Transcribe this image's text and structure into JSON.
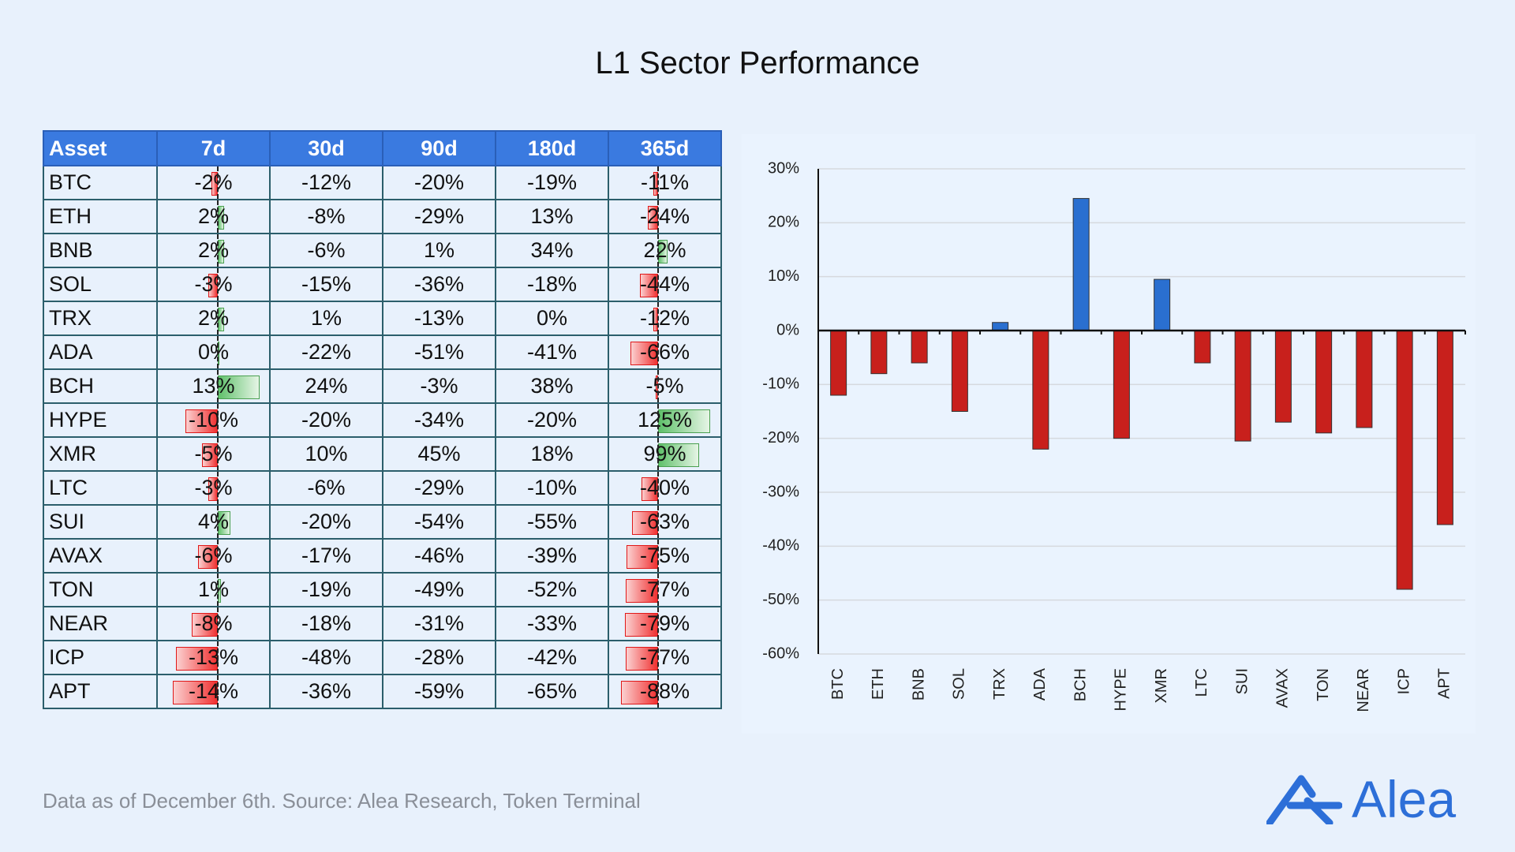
{
  "header": {
    "title": "L1 Sector Performance"
  },
  "table": {
    "columns": [
      "Asset",
      "7d",
      "30d",
      "90d",
      "180d",
      "365d"
    ],
    "rows": [
      [
        "BTC",
        "-2%",
        "-12%",
        "-20%",
        "-19%",
        "-11%"
      ],
      [
        "ETH",
        "2%",
        "-8%",
        "-29%",
        "13%",
        "-24%"
      ],
      [
        "BNB",
        "2%",
        "-6%",
        "1%",
        "34%",
        "22%"
      ],
      [
        "SOL",
        "-3%",
        "-15%",
        "-36%",
        "-18%",
        "-44%"
      ],
      [
        "TRX",
        "2%",
        "1%",
        "-13%",
        "0%",
        "-12%"
      ],
      [
        "ADA",
        "0%",
        "-22%",
        "-51%",
        "-41%",
        "-66%"
      ],
      [
        "BCH",
        "13%",
        "24%",
        "-3%",
        "38%",
        "-5%"
      ],
      [
        "HYPE",
        "-10%",
        "-20%",
        "-34%",
        "-20%",
        "125%"
      ],
      [
        "XMR",
        "-5%",
        "10%",
        "45%",
        "18%",
        "99%"
      ],
      [
        "LTC",
        "-3%",
        "-6%",
        "-29%",
        "-10%",
        "-40%"
      ],
      [
        "SUI",
        "4%",
        "-20%",
        "-54%",
        "-55%",
        "-63%"
      ],
      [
        "AVAX",
        "-6%",
        "-17%",
        "-46%",
        "-39%",
        "-75%"
      ],
      [
        "TON",
        "1%",
        "-19%",
        "-49%",
        "-52%",
        "-77%"
      ],
      [
        "NEAR",
        "-8%",
        "-18%",
        "-31%",
        "-33%",
        "-79%"
      ],
      [
        "ICP",
        "-13%",
        "-48%",
        "-28%",
        "-42%",
        "-77%"
      ],
      [
        "APT",
        "-14%",
        "-36%",
        "-59%",
        "-65%",
        "-88%"
      ]
    ]
  },
  "chart_data": {
    "type": "bar",
    "categories": [
      "BTC",
      "ETH",
      "BNB",
      "SOL",
      "TRX",
      "ADA",
      "BCH",
      "HYPE",
      "XMR",
      "LTC",
      "SUI",
      "AVAX",
      "TON",
      "NEAR",
      "ICP",
      "APT"
    ],
    "values": [
      -12,
      -8,
      -6,
      -15,
      1.5,
      -22,
      24.5,
      -20,
      9.5,
      -6,
      -20.5,
      -17,
      -19,
      -18,
      -48,
      -36
    ],
    "positive_color": "#2a6fd0",
    "negative_color": "#c8201c",
    "ylim": [
      -60,
      30
    ],
    "yticks": [
      {
        "value": -60,
        "label": "-60%"
      },
      {
        "value": -50,
        "label": "-50%"
      },
      {
        "value": -40,
        "label": "-40%"
      },
      {
        "value": -30,
        "label": "-30%"
      },
      {
        "value": -20,
        "label": "-20%"
      },
      {
        "value": -10,
        "label": "-10%"
      },
      {
        "value": 0,
        "label": "0%"
      },
      {
        "value": 10,
        "label": "10%"
      },
      {
        "value": 20,
        "label": "20%"
      },
      {
        "value": 30,
        "label": "30%"
      }
    ],
    "grid": true
  },
  "footer": {
    "note": "Data as of December 6th. Source: Alea Research, Token Terminal",
    "logo": "Alea"
  }
}
